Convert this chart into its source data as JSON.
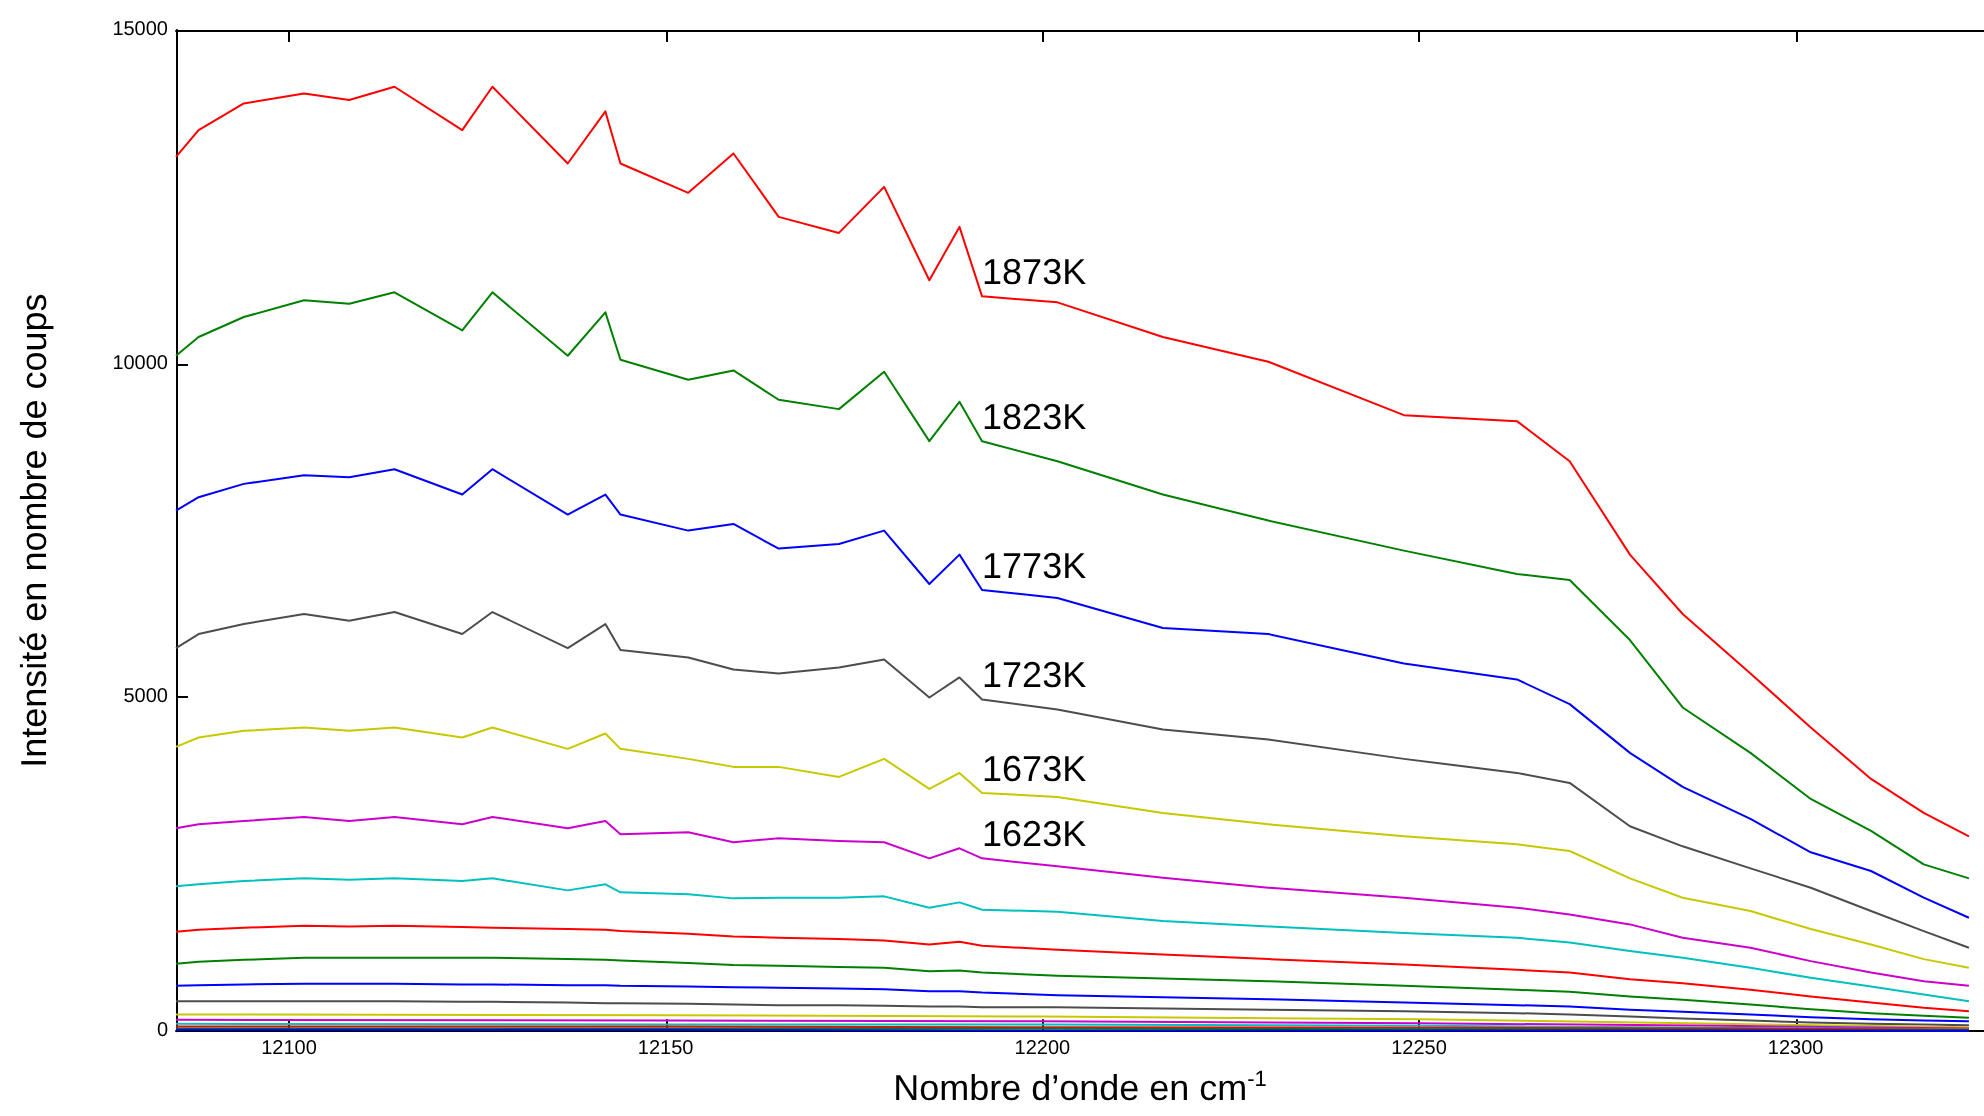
{
  "chart_data": {
    "type": "line",
    "xlabel": "Nombre d’onde en cm$^{-1}$",
    "ylabel": "Intensité en nombre de coups",
    "x": [
      12085,
      12088,
      12094,
      12102,
      12108,
      12114,
      12123,
      12127,
      12137,
      12142,
      12144,
      12153,
      12159,
      12165,
      12173,
      12179,
      12185,
      12189,
      12192,
      12202,
      12216,
      12230,
      12248,
      12263,
      12270,
      12278,
      12285,
      12294,
      12302,
      12310,
      12317,
      12323
    ],
    "xlim": [
      12085,
      12325
    ],
    "xticks": [
      12100,
      12150,
      12200,
      12250,
      12300
    ],
    "ylim": [
      0,
      15000
    ],
    "yticks": [
      0,
      5000,
      10000,
      15000
    ],
    "series": [
      {
        "name": "1873K",
        "color": "#ff0000",
        "values": [
          13100,
          13500,
          13900,
          14050,
          13950,
          14150,
          13500,
          14150,
          13000,
          13780,
          13000,
          12560,
          13150,
          12200,
          11960,
          12650,
          11250,
          12050,
          11010,
          10920,
          10400,
          10030,
          9230,
          9140,
          8540,
          7140,
          6250,
          5360,
          4550,
          3780,
          3270,
          2920
        ]
      },
      {
        "name": "1823K",
        "color": "#008000",
        "values": [
          10120,
          10400,
          10700,
          10950,
          10900,
          11070,
          10500,
          11070,
          10120,
          10770,
          10060,
          9760,
          9900,
          9460,
          9320,
          9880,
          8840,
          9430,
          8840,
          8540,
          8040,
          7650,
          7200,
          6850,
          6760,
          5860,
          4850,
          4170,
          3480,
          3000,
          2500,
          2290
        ]
      },
      {
        "name": "1773K",
        "color": "#0000ff",
        "values": [
          7800,
          8000,
          8200,
          8330,
          8300,
          8420,
          8040,
          8420,
          7740,
          8040,
          7740,
          7500,
          7600,
          7230,
          7300,
          7500,
          6700,
          7140,
          6610,
          6490,
          6040,
          5950,
          5510,
          5270,
          4900,
          4170,
          3660,
          3180,
          2680,
          2400,
          2000,
          1700
        ]
      },
      {
        "name": "1723K",
        "color": "#4d4d4d",
        "values": [
          5740,
          5950,
          6100,
          6250,
          6150,
          6280,
          5950,
          6280,
          5740,
          6100,
          5710,
          5600,
          5420,
          5360,
          5450,
          5570,
          5000,
          5300,
          4970,
          4820,
          4520,
          4370,
          4080,
          3870,
          3720,
          3070,
          2770,
          2440,
          2150,
          1800,
          1500,
          1250
        ]
      },
      {
        "name": "1673K",
        "color": "#c8c800",
        "values": [
          4260,
          4400,
          4500,
          4550,
          4500,
          4550,
          4400,
          4550,
          4230,
          4460,
          4230,
          4080,
          3960,
          3960,
          3810,
          4080,
          3630,
          3870,
          3570,
          3510,
          3270,
          3100,
          2920,
          2800,
          2700,
          2290,
          2000,
          1800,
          1530,
          1300,
          1080,
          950
        ]
      },
      {
        "name": "1623K",
        "color": "#cc00cc",
        "values": [
          3040,
          3100,
          3150,
          3210,
          3150,
          3210,
          3100,
          3210,
          3040,
          3150,
          2950,
          2980,
          2830,
          2890,
          2850,
          2830,
          2590,
          2740,
          2590,
          2470,
          2300,
          2150,
          2000,
          1850,
          1750,
          1600,
          1400,
          1250,
          1050,
          880,
          750,
          680
        ]
      },
      {
        "color": "#00c0c0",
        "values": [
          2170,
          2200,
          2250,
          2290,
          2270,
          2290,
          2250,
          2290,
          2110,
          2200,
          2080,
          2050,
          1990,
          2000,
          2000,
          2020,
          1850,
          1930,
          1820,
          1790,
          1650,
          1570,
          1470,
          1400,
          1330,
          1200,
          1100,
          950,
          800,
          670,
          550,
          450
        ]
      },
      {
        "color": "#ff0000",
        "values": [
          1490,
          1520,
          1550,
          1580,
          1570,
          1580,
          1560,
          1550,
          1530,
          1520,
          1500,
          1460,
          1420,
          1400,
          1380,
          1360,
          1300,
          1340,
          1280,
          1220,
          1150,
          1080,
          1000,
          920,
          880,
          780,
          720,
          620,
          520,
          430,
          350,
          300
        ]
      },
      {
        "color": "#008000",
        "values": [
          1010,
          1040,
          1070,
          1100,
          1100,
          1100,
          1100,
          1100,
          1080,
          1070,
          1060,
          1020,
          990,
          980,
          960,
          950,
          900,
          910,
          880,
          830,
          790,
          750,
          680,
          620,
          590,
          520,
          470,
          400,
          330,
          270,
          230,
          200
        ]
      },
      {
        "color": "#0000ff",
        "values": [
          680,
          690,
          700,
          710,
          710,
          710,
          700,
          700,
          690,
          690,
          680,
          670,
          660,
          650,
          640,
          630,
          600,
          600,
          580,
          540,
          510,
          480,
          430,
          390,
          370,
          320,
          290,
          250,
          210,
          180,
          160,
          150
        ]
      },
      {
        "color": "#4d4d4d",
        "values": [
          450,
          450,
          450,
          450,
          450,
          450,
          440,
          440,
          430,
          420,
          420,
          410,
          400,
          390,
          390,
          380,
          370,
          370,
          360,
          360,
          340,
          320,
          300,
          270,
          250,
          220,
          190,
          160,
          130,
          110,
          100,
          90
        ]
      },
      {
        "color": "#c8c800",
        "x": [
          12085,
          12150,
          12200,
          12250,
          12290,
          12323
        ],
        "values": [
          250,
          240,
          220,
          180,
          110,
          60
        ]
      },
      {
        "color": "#cc00cc",
        "x": [
          12085,
          12150,
          12200,
          12250,
          12290,
          12323
        ],
        "values": [
          170,
          160,
          150,
          120,
          80,
          40
        ]
      },
      {
        "color": "#00c0c0",
        "x": [
          12085,
          12150,
          12200,
          12250,
          12290,
          12323
        ],
        "values": [
          110,
          100,
          100,
          80,
          50,
          30
        ]
      },
      {
        "color": "#ff0000",
        "x": [
          12085,
          12150,
          12200,
          12250,
          12290,
          12323
        ],
        "values": [
          70,
          70,
          60,
          50,
          40,
          20
        ]
      },
      {
        "color": "#008000",
        "x": [
          12085,
          12150,
          12200,
          12250,
          12290,
          12323
        ],
        "values": [
          40,
          40,
          40,
          30,
          20,
          10
        ]
      },
      {
        "color": "#0000ff",
        "x": [
          12085,
          12150,
          12200,
          12250,
          12290,
          12323
        ],
        "values": [
          20,
          20,
          10,
          10,
          10,
          5
        ]
      }
    ]
  }
}
